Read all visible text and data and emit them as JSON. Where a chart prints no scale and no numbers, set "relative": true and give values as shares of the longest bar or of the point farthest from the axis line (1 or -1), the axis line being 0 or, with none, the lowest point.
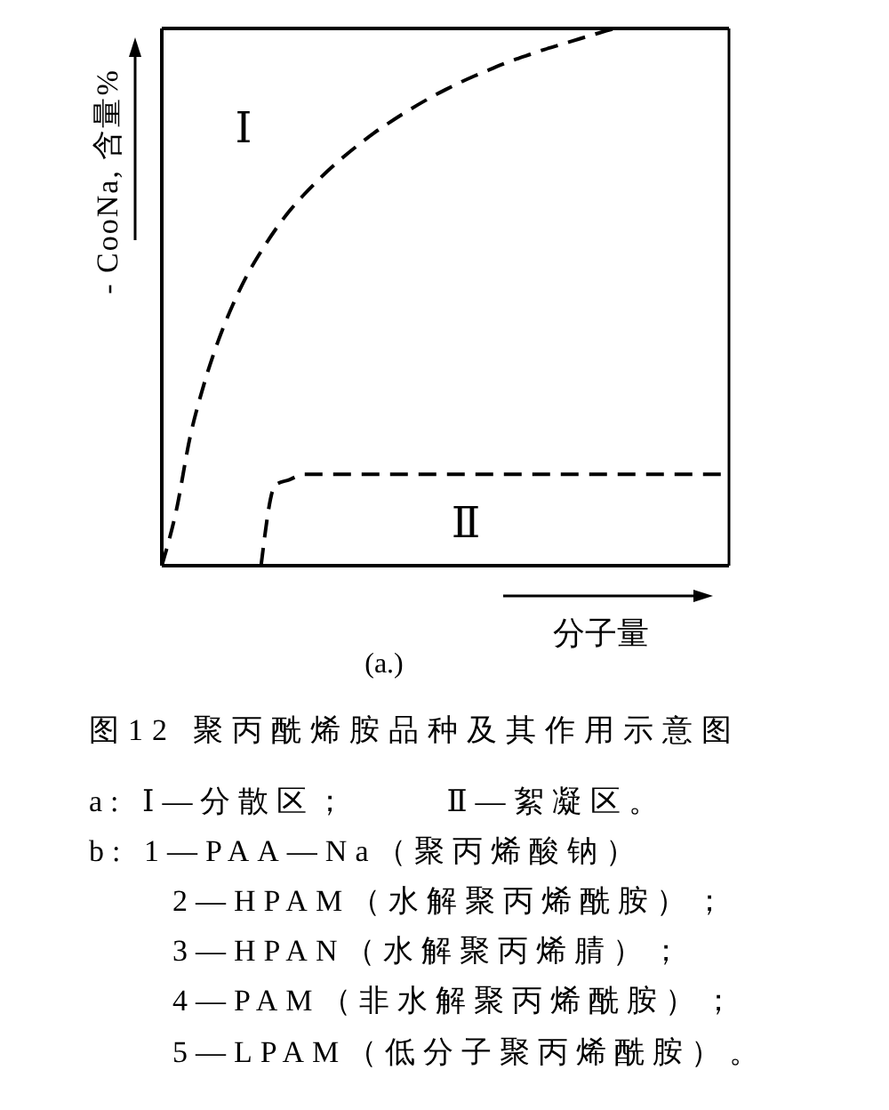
{
  "chart_data": {
    "type": "line",
    "title": "图12 聚丙酰烯胺品种及其作用示意图",
    "xlabel": "分子量",
    "ylabel": "- CooNa, 含量%",
    "categories": [
      null,
      null,
      null,
      null,
      null,
      null,
      null,
      null,
      null,
      null,
      null,
      null,
      null,
      null,
      null,
      null,
      null,
      null,
      null,
      null,
      null,
      null,
      null,
      null,
      null,
      null,
      null,
      null,
      null,
      null,
      null,
      null,
      null,
      null,
      null,
      null,
      null,
      null,
      null,
      null,
      null
    ],
    "relative": true,
    "line_style": "dashed",
    "series": [
      {
        "color": "#000000",
        "values": [
          0,
          0.1,
          0.24,
          0.34,
          0.42,
          0.485,
          0.54,
          0.585,
          0.625,
          0.66,
          0.69,
          0.717,
          0.742,
          0.765,
          0.786,
          0.806,
          0.824,
          0.841,
          0.857,
          0.872,
          0.886,
          0.899,
          0.911,
          0.922,
          0.933,
          0.943,
          0.952,
          0.961,
          0.969,
          0.977,
          0.985,
          0.993,
          1.0,
          null,
          null,
          null,
          null,
          null,
          null,
          null,
          null
        ]
      },
      {
        "color": "#000000",
        "values": [
          null,
          null,
          null,
          null,
          null,
          null,
          null,
          0,
          0.15,
          0.16,
          0.17,
          0.17,
          0.17,
          0.17,
          0.17,
          0.17,
          0.17,
          0.17,
          0.17,
          0.17,
          0.17,
          0.17,
          0.17,
          0.17,
          0.17,
          0.17,
          0.17,
          0.17,
          0.17,
          0.17,
          0.17,
          0.17,
          0.17,
          0.17,
          0.17,
          0.17,
          0.17,
          0.17,
          0.17,
          0.17,
          0.17
        ]
      }
    ],
    "annotations": [
      "Ⅰ",
      "Ⅱ",
      "(a.)",
      "a: Ⅰ—分散区；      Ⅱ—絮凝区。",
      "b: 1—PAA—Na（聚丙烯酸钠）",
      "2—HPAM（水解聚丙烯酰胺）；",
      "3—HPAN（水解聚丙烯腈）；",
      "4—PAM（非水解聚丙烯酰胺）；",
      "5—LPAM（低分子聚丙烯酰胺）。"
    ]
  }
}
